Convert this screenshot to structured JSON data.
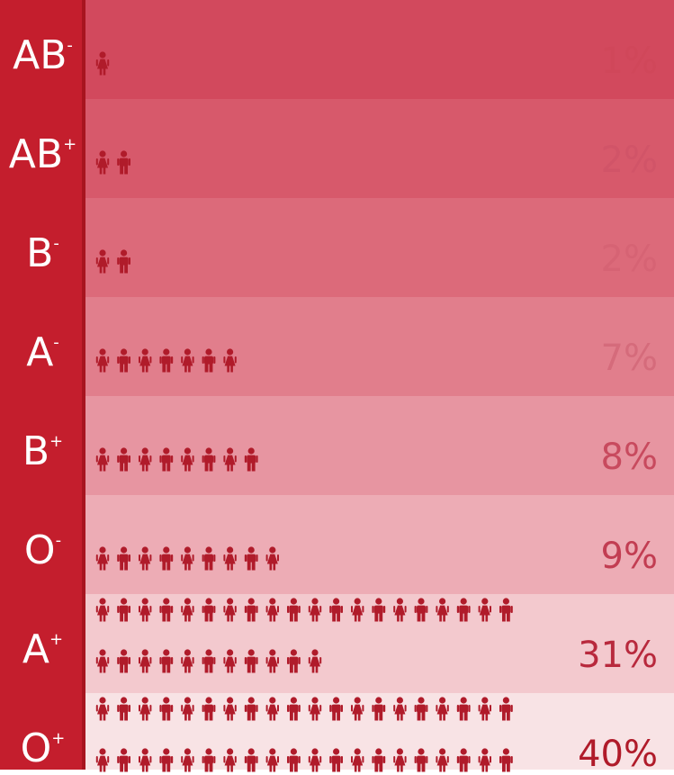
{
  "chart_data": {
    "type": "pictograph",
    "categories": [
      {
        "group": "AB",
        "sign": "-",
        "value": 1,
        "label": "1%"
      },
      {
        "group": "AB",
        "sign": "+",
        "value": 2,
        "label": "2%"
      },
      {
        "group": "B",
        "sign": "-",
        "value": 2,
        "label": "2%"
      },
      {
        "group": "A",
        "sign": "-",
        "value": 7,
        "label": "7%"
      },
      {
        "group": "B",
        "sign": "+",
        "value": 8,
        "label": "8%"
      },
      {
        "group": "O",
        "sign": "-",
        "value": 9,
        "label": "9%"
      },
      {
        "group": "A",
        "sign": "+",
        "value": 31,
        "label": "31%"
      },
      {
        "group": "O",
        "sign": "+",
        "value": 40,
        "label": "40%"
      }
    ],
    "unit": "%",
    "icon": "person-icon"
  },
  "colors": {
    "sidebar": "#c41e2d",
    "icon": "#b01b2a",
    "bands": [
      "#d2495d",
      "#d7596b",
      "#dc6a7a",
      "#e17e8c",
      "#e795a1",
      "#edacb5",
      "#f3c9ce",
      "#f8e3e5"
    ],
    "percent_text": [
      "#d0475a",
      "#d15468",
      "#d66374",
      "#d56b7b",
      "#c84a5e",
      "#c23d52",
      "#b8293d",
      "#b01b2a"
    ]
  }
}
